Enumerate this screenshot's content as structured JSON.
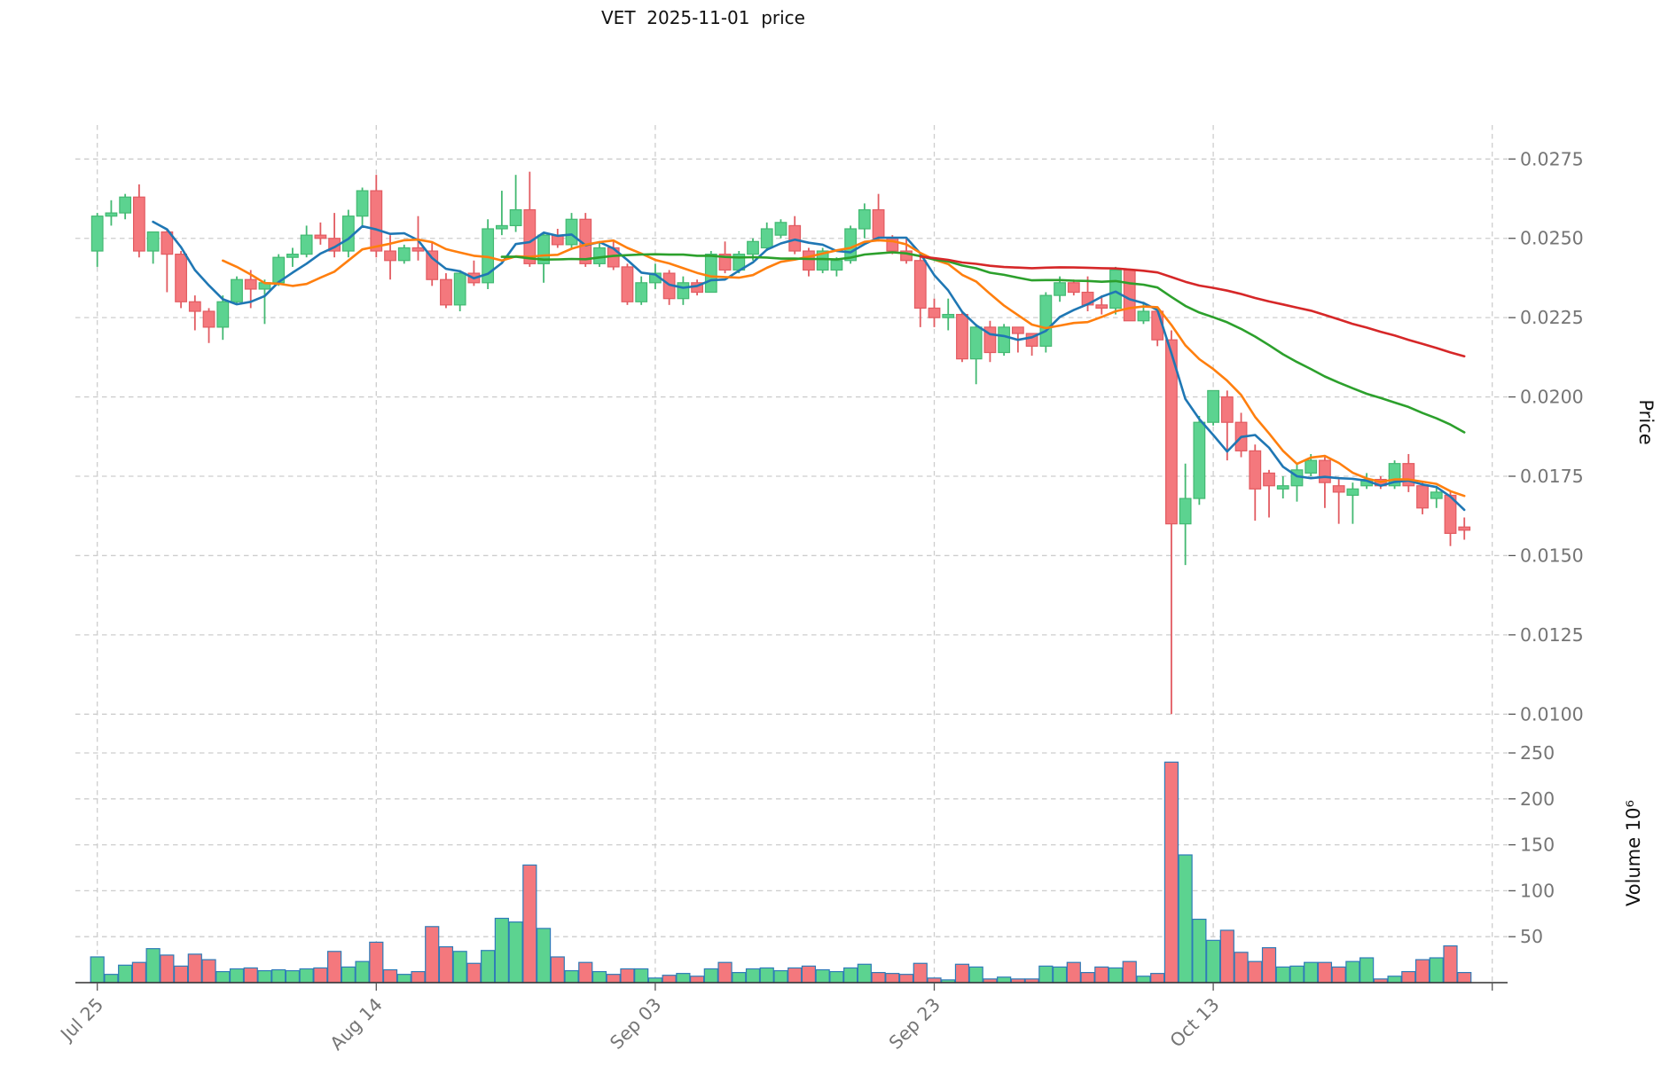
{
  "title": "VET  2025-11-01  price",
  "colors": {
    "background": "#ffffff",
    "candle_up": "#5cd390",
    "candle_up_edge": "#43b972",
    "candle_down": "#f4787d",
    "candle_down_edge": "#e25b61",
    "volume_bar_edge": "#2e7bb8",
    "grid": "#cdcdcd",
    "spine": "#303030",
    "tick_label": "#757575",
    "ma_colors": [
      "#1f77b4",
      "#ff7f0e",
      "#2ca02c",
      "#d62728"
    ]
  },
  "price_axis": {
    "label": "Price",
    "side": "right",
    "ticks": [
      "0.0275",
      "0.0250",
      "0.0225",
      "0.0200",
      "0.0175",
      "0.0150",
      "0.0125",
      "0.0100"
    ],
    "tick_values": [
      0.0275,
      0.025,
      0.0225,
      0.02,
      0.0175,
      0.015,
      0.0125,
      0.01
    ]
  },
  "volume_axis": {
    "label": "Volume  10⁶",
    "side": "right",
    "ticks": [
      "250",
      "200",
      "150",
      "100",
      "50"
    ],
    "tick_values": [
      250,
      200,
      150,
      100,
      50
    ]
  },
  "x_axis": {
    "ticks": [
      {
        "label": "Jul 25",
        "day_index": 0
      },
      {
        "label": "Aug 14",
        "day_index": 20
      },
      {
        "label": "Sep 03",
        "day_index": 40
      },
      {
        "label": "Sep 23",
        "day_index": 60
      },
      {
        "label": "Oct 13",
        "day_index": 80
      },
      {
        "label": "",
        "day_index": 100
      }
    ]
  },
  "chart_data": {
    "type": "candlestick",
    "symbol": "VET",
    "title": "VET  2025-11-01  price",
    "legend_position": "none",
    "grid": true,
    "price_range": [
      0.01,
      0.0275
    ],
    "volume_range_millions": [
      0,
      250
    ],
    "moving_averages": [
      {
        "period": 5,
        "color": "#1f77b4"
      },
      {
        "period": 10,
        "color": "#ff7f0e"
      },
      {
        "period": 30,
        "color": "#2ca02c"
      },
      {
        "period": 60,
        "color": "#d62728"
      }
    ],
    "dates": [
      "2025-07-25",
      "2025-07-26",
      "2025-07-27",
      "2025-07-28",
      "2025-07-29",
      "2025-07-30",
      "2025-07-31",
      "2025-08-01",
      "2025-08-02",
      "2025-08-03",
      "2025-08-04",
      "2025-08-05",
      "2025-08-06",
      "2025-08-07",
      "2025-08-08",
      "2025-08-09",
      "2025-08-10",
      "2025-08-11",
      "2025-08-12",
      "2025-08-13",
      "2025-08-14",
      "2025-08-15",
      "2025-08-16",
      "2025-08-17",
      "2025-08-18",
      "2025-08-19",
      "2025-08-20",
      "2025-08-21",
      "2025-08-22",
      "2025-08-23",
      "2025-08-24",
      "2025-08-25",
      "2025-08-26",
      "2025-08-27",
      "2025-08-28",
      "2025-08-29",
      "2025-08-30",
      "2025-08-31",
      "2025-09-01",
      "2025-09-02",
      "2025-09-03",
      "2025-09-04",
      "2025-09-05",
      "2025-09-06",
      "2025-09-07",
      "2025-09-08",
      "2025-09-09",
      "2025-09-10",
      "2025-09-11",
      "2025-09-12",
      "2025-09-13",
      "2025-09-14",
      "2025-09-15",
      "2025-09-16",
      "2025-09-17",
      "2025-09-18",
      "2025-09-19",
      "2025-09-20",
      "2025-09-21",
      "2025-09-22",
      "2025-09-23",
      "2025-09-24",
      "2025-09-25",
      "2025-09-26",
      "2025-09-27",
      "2025-09-28",
      "2025-09-29",
      "2025-09-30",
      "2025-10-01",
      "2025-10-02",
      "2025-10-03",
      "2025-10-04",
      "2025-10-05",
      "2025-10-06",
      "2025-10-07",
      "2025-10-08",
      "2025-10-09",
      "2025-10-10",
      "2025-10-11",
      "2025-10-12",
      "2025-10-13",
      "2025-10-14",
      "2025-10-15",
      "2025-10-16",
      "2025-10-17",
      "2025-10-18",
      "2025-10-19",
      "2025-10-20",
      "2025-10-21",
      "2025-10-22",
      "2025-10-23",
      "2025-10-24",
      "2025-10-25",
      "2025-10-26",
      "2025-10-27",
      "2025-10-28",
      "2025-10-29",
      "2025-10-30",
      "2025-10-31"
    ],
    "open": [
      0.0246,
      0.0257,
      0.0258,
      0.0263,
      0.0246,
      0.0252,
      0.0245,
      0.023,
      0.0227,
      0.0222,
      0.023,
      0.0237,
      0.0234,
      0.0236,
      0.0244,
      0.0245,
      0.0251,
      0.025,
      0.0246,
      0.0257,
      0.0265,
      0.0246,
      0.0243,
      0.0247,
      0.0246,
      0.0237,
      0.0229,
      0.0239,
      0.0236,
      0.0253,
      0.0254,
      0.0259,
      0.0242,
      0.0251,
      0.0248,
      0.0256,
      0.0242,
      0.0247,
      0.0241,
      0.023,
      0.0236,
      0.0239,
      0.0231,
      0.0236,
      0.0233,
      0.0245,
      0.024,
      0.0245,
      0.0247,
      0.0251,
      0.0254,
      0.0246,
      0.024,
      0.024,
      0.0243,
      0.0253,
      0.0259,
      0.025,
      0.0246,
      0.0243,
      0.0228,
      0.0225,
      0.0226,
      0.0212,
      0.0222,
      0.0214,
      0.0222,
      0.022,
      0.0216,
      0.0232,
      0.0236,
      0.0233,
      0.0229,
      0.0228,
      0.024,
      0.0224,
      0.0227,
      0.0218,
      0.016,
      0.0168,
      0.0192,
      0.02,
      0.0192,
      0.0183,
      0.0176,
      0.0171,
      0.0172,
      0.0176,
      0.018,
      0.0172,
      0.0169,
      0.0172,
      0.0174,
      0.0172,
      0.0179,
      0.0172,
      0.0168,
      0.0169,
      0.0159
    ],
    "high": [
      0.0258,
      0.0262,
      0.0264,
      0.0267,
      0.0252,
      0.0253,
      0.0246,
      0.0232,
      0.0228,
      0.0232,
      0.0238,
      0.024,
      0.0237,
      0.0245,
      0.0247,
      0.0254,
      0.0255,
      0.0258,
      0.0259,
      0.0266,
      0.027,
      0.0251,
      0.0248,
      0.0257,
      0.0249,
      0.0239,
      0.024,
      0.0243,
      0.0256,
      0.0265,
      0.027,
      0.0271,
      0.0252,
      0.0253,
      0.0258,
      0.0258,
      0.0249,
      0.0249,
      0.0242,
      0.0238,
      0.0242,
      0.024,
      0.0238,
      0.0237,
      0.0246,
      0.0249,
      0.0246,
      0.025,
      0.0255,
      0.0256,
      0.0257,
      0.0247,
      0.0247,
      0.0244,
      0.0254,
      0.0261,
      0.0264,
      0.0251,
      0.025,
      0.0244,
      0.0231,
      0.0231,
      0.0227,
      0.0223,
      0.0224,
      0.0223,
      0.0222,
      0.022,
      0.0233,
      0.0238,
      0.0237,
      0.0238,
      0.0232,
      0.0241,
      0.024,
      0.023,
      0.0227,
      0.0221,
      0.0179,
      0.0194,
      0.0202,
      0.0202,
      0.0195,
      0.0185,
      0.0177,
      0.0175,
      0.0179,
      0.0182,
      0.0181,
      0.0174,
      0.0173,
      0.0176,
      0.0175,
      0.018,
      0.0182,
      0.0173,
      0.0172,
      0.017,
      0.0162
    ],
    "low": [
      0.0241,
      0.0254,
      0.0256,
      0.0244,
      0.0242,
      0.0233,
      0.0228,
      0.0221,
      0.0217,
      0.0218,
      0.0229,
      0.0228,
      0.0223,
      0.0235,
      0.0241,
      0.0244,
      0.0248,
      0.0244,
      0.0244,
      0.0254,
      0.0244,
      0.0237,
      0.0242,
      0.0243,
      0.0235,
      0.0228,
      0.0227,
      0.0235,
      0.0234,
      0.0251,
      0.0252,
      0.0241,
      0.0236,
      0.0247,
      0.0247,
      0.0241,
      0.0241,
      0.024,
      0.0229,
      0.0229,
      0.0234,
      0.0229,
      0.0229,
      0.0232,
      0.0233,
      0.0239,
      0.0239,
      0.0243,
      0.0246,
      0.025,
      0.0245,
      0.0238,
      0.0239,
      0.0238,
      0.0242,
      0.025,
      0.0249,
      0.0245,
      0.0242,
      0.0222,
      0.0222,
      0.0221,
      0.0211,
      0.0204,
      0.0211,
      0.0213,
      0.0214,
      0.0213,
      0.0214,
      0.023,
      0.0232,
      0.0227,
      0.0226,
      0.0226,
      0.0224,
      0.0223,
      0.0216,
      0.01,
      0.0147,
      0.0166,
      0.0191,
      0.018,
      0.0181,
      0.0161,
      0.0162,
      0.0168,
      0.0167,
      0.0175,
      0.0165,
      0.016,
      0.016,
      0.0171,
      0.0171,
      0.0171,
      0.017,
      0.0163,
      0.0165,
      0.0153,
      0.0155
    ],
    "close": [
      0.0257,
      0.0258,
      0.0263,
      0.0246,
      0.0252,
      0.0245,
      0.023,
      0.0227,
      0.0222,
      0.023,
      0.0237,
      0.0234,
      0.0236,
      0.0244,
      0.0245,
      0.0251,
      0.025,
      0.0246,
      0.0257,
      0.0265,
      0.0246,
      0.0243,
      0.0247,
      0.0246,
      0.0237,
      0.0229,
      0.0239,
      0.0236,
      0.0253,
      0.0254,
      0.0259,
      0.0242,
      0.0251,
      0.0248,
      0.0256,
      0.0242,
      0.0247,
      0.0241,
      0.023,
      0.0236,
      0.0239,
      0.0231,
      0.0236,
      0.0233,
      0.0245,
      0.024,
      0.0245,
      0.0249,
      0.0253,
      0.0255,
      0.0246,
      0.024,
      0.0246,
      0.0243,
      0.0253,
      0.0259,
      0.025,
      0.0246,
      0.0243,
      0.0228,
      0.0225,
      0.0226,
      0.0212,
      0.0222,
      0.0214,
      0.0222,
      0.022,
      0.0216,
      0.0232,
      0.0236,
      0.0233,
      0.0229,
      0.0228,
      0.024,
      0.0224,
      0.0227,
      0.0218,
      0.016,
      0.0168,
      0.0192,
      0.0202,
      0.0192,
      0.0183,
      0.0171,
      0.0172,
      0.0172,
      0.0177,
      0.018,
      0.0173,
      0.017,
      0.0171,
      0.0174,
      0.0172,
      0.0179,
      0.0172,
      0.0165,
      0.017,
      0.0157,
      0.0158
    ],
    "volume_millions": [
      28,
      9,
      19,
      22,
      37,
      30,
      18,
      31,
      25,
      12,
      15,
      16,
      13,
      14,
      13,
      15,
      16,
      34,
      17,
      23,
      44,
      14,
      9,
      12,
      61,
      39,
      34,
      21,
      35,
      70,
      66,
      128,
      59,
      28,
      13,
      22,
      12,
      9,
      15,
      15,
      5,
      8,
      10,
      7,
      15,
      22,
      11,
      15,
      16,
      13,
      16,
      18,
      14,
      12,
      16,
      20,
      11,
      10,
      9,
      21,
      5,
      3,
      20,
      17,
      4,
      6,
      4,
      4,
      18,
      17,
      22,
      11,
      17,
      16,
      23,
      7,
      10,
      240,
      139,
      69,
      46,
      57,
      33,
      23,
      38,
      17,
      18,
      22,
      22,
      17,
      23,
      27,
      4,
      7,
      12,
      25,
      27,
      40,
      11
    ]
  }
}
